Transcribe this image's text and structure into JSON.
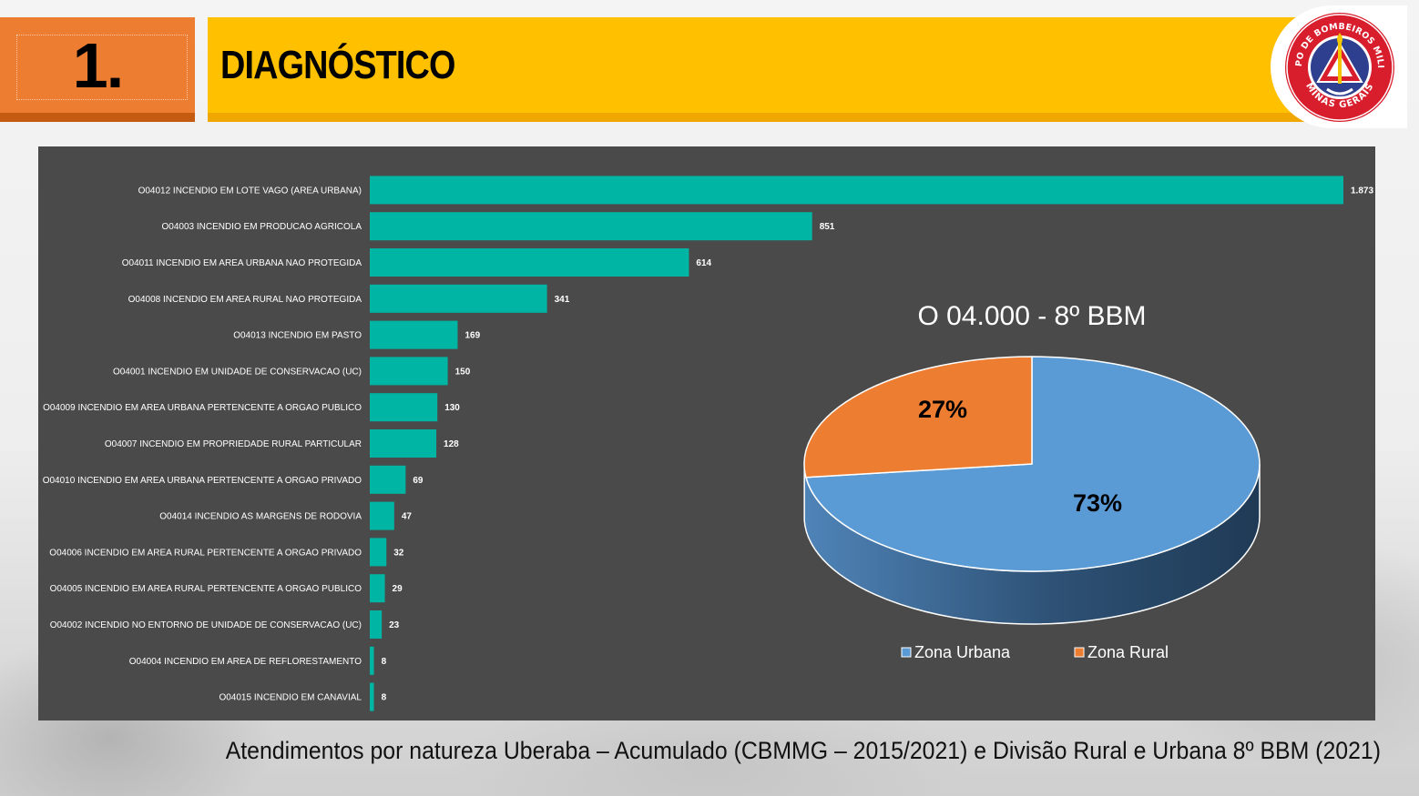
{
  "header": {
    "section_number": "1.",
    "section_title": "DIAGNÓSTICO",
    "logo": {
      "icon": "cbmmg-emblem-icon",
      "text_top": "CORPO DE BOMBEIROS MILITAR",
      "text_bottom": "MINAS GERAIS"
    }
  },
  "colors": {
    "orange": "#ed7d31",
    "yellow": "#ffc000",
    "panel_bg": "#4a4a4a",
    "bar_teal": "#00b5a3",
    "pie_blue": "#5b9bd5",
    "pie_orange": "#ed7d31"
  },
  "chart_data": [
    {
      "type": "bar",
      "orientation": "horizontal",
      "categories": [
        "O04012 INCENDIO EM LOTE VAGO (AREA URBANA)",
        "O04003 INCENDIO EM PRODUCAO AGRICOLA",
        "O04011 INCENDIO EM AREA URBANA NAO PROTEGIDA",
        "O04008 INCENDIO EM AREA RURAL NAO PROTEGIDA",
        "O04013 INCENDIO EM PASTO",
        "O04001 INCENDIO EM UNIDADE DE CONSERVACAO (UC)",
        "O04009 INCENDIO EM AREA URBANA PERTENCENTE A ORGAO PUBLICO",
        "O04007 INCENDIO EM PROPRIEDADE RURAL PARTICULAR",
        "O04010 INCENDIO EM AREA URBANA PERTENCENTE A ORGAO PRIVADO",
        "O04014 INCENDIO AS MARGENS DE RODOVIA",
        "O04006 INCENDIO EM AREA RURAL PERTENCENTE A ORGAO PRIVADO",
        "O04005 INCENDIO EM AREA RURAL PERTENCENTE A ORGAO PUBLICO",
        "O04002 INCENDIO NO ENTORNO DE UNIDADE DE CONSERVACAO (UC)",
        "O04004 INCENDIO EM AREA DE REFLORESTAMENTO",
        "O04015 INCENDIO EM CANAVIAL"
      ],
      "values": [
        1873,
        851,
        614,
        341,
        169,
        150,
        130,
        128,
        69,
        47,
        32,
        29,
        23,
        8,
        8
      ],
      "value_labels": [
        "1.873",
        "851",
        "614",
        "341",
        "169",
        "150",
        "130",
        "128",
        "69",
        "47",
        "32",
        "29",
        "23",
        "8",
        "8"
      ],
      "xlim": [
        0,
        1873
      ],
      "grid": false,
      "legend": "none"
    },
    {
      "type": "pie",
      "style": "3d",
      "title": "O 04.000 - 8º BBM",
      "labels": [
        "Zona Urbana",
        "Zona Rural"
      ],
      "values": [
        73,
        27
      ],
      "data_labels": [
        "73%",
        "27%"
      ],
      "colors": [
        "#5b9bd5",
        "#ed7d31"
      ],
      "legend": "bottom"
    }
  ],
  "caption": "Atendimentos por natureza Uberaba – Acumulado (CBMMG – 2015/2021) e Divisão Rural e Urbana 8º BBM (2021)"
}
